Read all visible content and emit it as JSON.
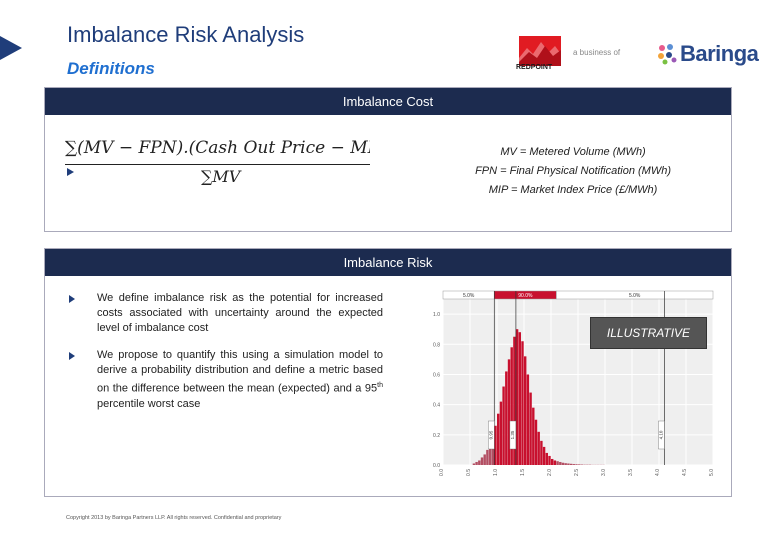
{
  "header": {
    "title": "Imbalance Risk Analysis",
    "subtitle": "Definitions"
  },
  "logos": {
    "redpoint": "REDPOINT",
    "separator": "a business of",
    "baringa": "Baringa"
  },
  "cost_panel": {
    "heading": "Imbalance Cost",
    "formula_numerator": "∑(MV − FPN).(Cash Out Price − MIP)",
    "formula_denominator": "∑MV",
    "definitions": [
      "MV = Metered Volume (MWh)",
      "FPN = Final Physical Notification (MWh)",
      "MIP = Market Index Price (£/MWh)"
    ]
  },
  "risk_panel": {
    "heading": "Imbalance Risk",
    "bullets": [
      "We define imbalance risk as the potential for increased costs associated with uncertainty around the expected level of imbalance cost",
      "We propose to quantify this using a simulation model to derive a probability distribution and define a metric based on the difference between the mean (expected) and a 95",
      " percentile worst case"
    ],
    "bullet_sup": "th",
    "badge": "ILLUSTRATIVE"
  },
  "chart_data": {
    "type": "bar",
    "x": [
      0.0,
      0.05,
      0.1,
      0.15,
      0.2,
      0.25,
      0.3,
      0.35,
      0.4,
      0.45,
      0.5,
      0.55,
      0.6,
      0.65,
      0.7,
      0.75,
      0.8,
      0.85,
      0.9,
      0.95,
      1.0,
      1.05,
      1.1,
      1.15,
      1.2,
      1.25,
      1.3,
      1.35,
      1.4,
      1.45,
      1.5,
      1.55,
      1.6,
      1.65,
      1.7,
      1.75,
      1.8,
      1.85,
      1.9,
      1.95,
      2.0,
      2.05,
      2.1,
      2.15,
      2.2,
      2.25,
      2.3,
      2.35,
      2.4,
      2.45,
      2.5,
      2.55,
      2.6,
      2.65,
      2.7,
      2.75,
      2.8,
      2.85,
      2.9,
      2.95,
      3.0,
      3.05,
      3.1,
      3.15,
      3.2,
      3.25,
      3.3,
      3.35,
      3.4,
      3.45,
      3.5,
      3.55,
      3.6,
      3.65,
      3.7,
      3.75,
      3.8,
      3.85,
      3.9,
      3.95,
      4.0,
      4.05,
      4.1,
      4.15,
      4.2,
      4.25,
      4.3,
      4.35,
      4.4,
      4.45,
      4.5,
      4.55,
      4.6,
      4.65,
      4.7,
      4.75,
      4.8,
      4.85,
      4.9,
      4.95
    ],
    "values": [
      0,
      0,
      0,
      0,
      0,
      0,
      0,
      0,
      0,
      0,
      0,
      0.01,
      0.02,
      0.03,
      0.05,
      0.07,
      0.1,
      0.14,
      0.19,
      0.26,
      0.34,
      0.42,
      0.52,
      0.62,
      0.7,
      0.78,
      0.85,
      0.9,
      0.88,
      0.82,
      0.72,
      0.6,
      0.48,
      0.38,
      0.3,
      0.22,
      0.16,
      0.12,
      0.08,
      0.06,
      0.04,
      0.03,
      0.025,
      0.02,
      0.015,
      0.012,
      0.01,
      0.008,
      0.006,
      0.005,
      0.004,
      0.003,
      0.002,
      0.002,
      0.002,
      0.001,
      0.001,
      0.001,
      0.001,
      0.001,
      0,
      0,
      0,
      0,
      0,
      0,
      0,
      0,
      0,
      0,
      0,
      0,
      0,
      0,
      0,
      0,
      0,
      0,
      0,
      0,
      0,
      0,
      0,
      0,
      0,
      0,
      0,
      0,
      0,
      0,
      0,
      0,
      0,
      0,
      0,
      0,
      0,
      0,
      0,
      0
    ],
    "band_labels": [
      "5.0%",
      "90.0%",
      "5.0%"
    ],
    "band_edges": [
      0.95,
      2.1
    ],
    "xlim": [
      0,
      5
    ],
    "ylim": [
      0,
      1.1
    ],
    "x_ticks": [
      "0.0",
      "0.5",
      "1.0",
      "1.5",
      "2.0",
      "2.5",
      "3.0",
      "3.5",
      "4.0",
      "4.5",
      "5.0"
    ],
    "y_ticks": [
      "0.0",
      "0.2",
      "0.4",
      "0.6",
      "0.8",
      "1.0"
    ],
    "vertical_lines": [
      {
        "x": 0.95,
        "label": "0.95"
      },
      {
        "x": 1.35,
        "label": "1.35"
      },
      {
        "x": 4.1,
        "label": "4.10"
      }
    ],
    "bar_color": "#c8102e"
  },
  "footer": {
    "copyright": "Copyright 2013 by Baringa Partners LLP. All rights reserved. Confidential and proprietary"
  }
}
